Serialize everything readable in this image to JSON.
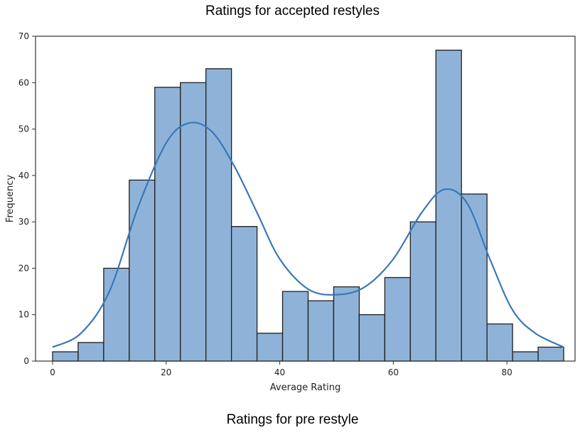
{
  "header": {
    "title": "Ratings for accepted restyles"
  },
  "footer": {
    "caption": "Ratings for pre restyle"
  },
  "chart_data": {
    "type": "bar",
    "subtype": "histogram_with_kde",
    "title": "",
    "xlabel": "Average Rating",
    "ylabel": "Frequency",
    "xlim": [
      -3,
      92
    ],
    "ylim": [
      0,
      70
    ],
    "xticks": [
      0,
      20,
      40,
      60,
      80
    ],
    "yticks": [
      0,
      10,
      20,
      30,
      40,
      50,
      60,
      70
    ],
    "bin_edges": [
      0,
      4.5,
      9,
      13.5,
      18,
      22.5,
      27,
      31.5,
      36,
      40.5,
      45,
      49.5,
      54,
      58.5,
      63,
      67.5,
      72,
      76.5,
      81,
      85.5,
      90
    ],
    "values": [
      2,
      4,
      20,
      39,
      59,
      60,
      63,
      29,
      6,
      15,
      13,
      16,
      10,
      18,
      30,
      67,
      36,
      8,
      2,
      3
    ],
    "kde": {
      "x": [
        0,
        5,
        10,
        15,
        20,
        24,
        28,
        32,
        36,
        40,
        45,
        50,
        55,
        60,
        65,
        69,
        73,
        77,
        81,
        85,
        90
      ],
      "y": [
        3,
        6,
        15,
        33,
        47,
        51.3,
        49.5,
        42,
        32,
        22,
        15.5,
        14.3,
        16,
        22,
        32,
        37,
        34,
        22,
        11,
        6,
        3
      ]
    },
    "colors": {
      "bar_fill": "#8fb3d8",
      "bar_edge": "#1f1f1f",
      "kde_line": "#3a78b8"
    }
  }
}
